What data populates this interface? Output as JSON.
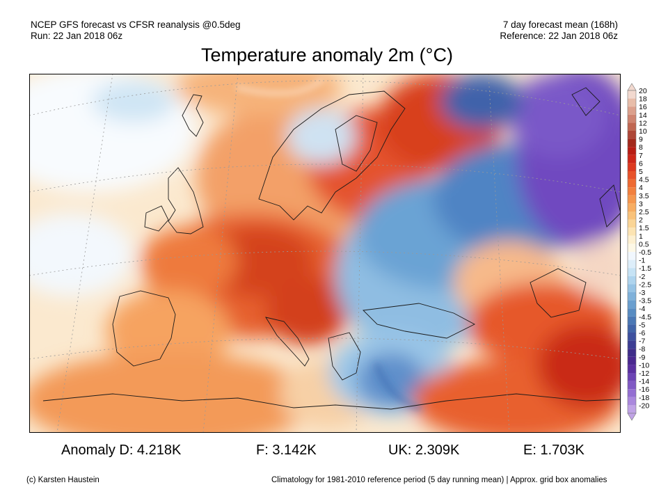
{
  "header": {
    "line1_left": "NCEP GFS forecast vs CFSR reanalysis @0.5deg",
    "line2_left": "Run: 22 Jan 2018 06z",
    "line1_right": "7 day forecast mean (168h)",
    "line2_right": "Reference: 22 Jan 2018 06z"
  },
  "title": "Temperature anomaly 2m (°C)",
  "colorbar": {
    "labels": [
      "20",
      "18",
      "16",
      "14",
      "12",
      "10",
      "9",
      "8",
      "7",
      "6",
      "5",
      "4.5",
      "4",
      "3.5",
      "3",
      "2.5",
      "2",
      "1.5",
      "1",
      "0.5",
      "-0.5",
      "-1",
      "-1.5",
      "-2",
      "-2.5",
      "-3",
      "-3.5",
      "-4",
      "-4.5",
      "-5",
      "-6",
      "-7",
      "-8",
      "-9",
      "-10",
      "-12",
      "-14",
      "-16",
      "-18",
      "-20"
    ],
    "colors": [
      "#f2d9cf",
      "#e8bda9",
      "#dca08c",
      "#cf8470",
      "#c06752",
      "#ae4738",
      "#a3291c",
      "#b81d14",
      "#cd2719",
      "#dd3a20",
      "#e8522a",
      "#ee6a32",
      "#f2803e",
      "#f5974e",
      "#f7ad62",
      "#f9c27a",
      "#fad596",
      "#fce4b3",
      "#fdf0d1",
      "#fdf8e6",
      "#f1f7fd",
      "#ddeefa",
      "#c6e3f5",
      "#aed4ee",
      "#96c3e5",
      "#7fb1da",
      "#6a9fcf",
      "#588cc2",
      "#4b78b5",
      "#4164a8",
      "#3d509e",
      "#3c3d93",
      "#3f2d8a",
      "#4a2890",
      "#5a30a0",
      "#6c44b4",
      "#8059c4",
      "#946fd2",
      "#aa88dd",
      "#c0a3e6"
    ]
  },
  "anomalies": {
    "germany": "Anomaly D: 4.218K",
    "france": "F: 3.142K",
    "uk": "UK: 2.309K",
    "spain": "E: 1.703K"
  },
  "footer": {
    "copyright": "(c) Karsten Haustein",
    "climatology": "Climatology for 1981-2010 reference period (5 day running mean) | Approx. grid box anomalies"
  }
}
